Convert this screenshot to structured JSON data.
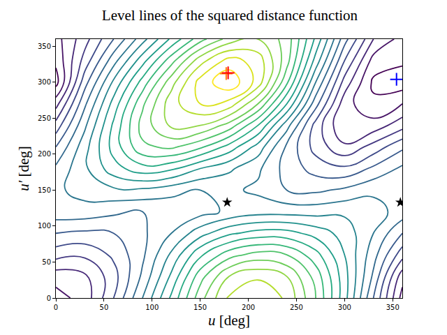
{
  "chart_data": {
    "type": "contour",
    "title": "Level lines of the squared distance function",
    "x_label": "u [deg]",
    "y_label": "u′ [deg]",
    "color": "viridis",
    "grid": false,
    "x": [
      0,
      30,
      60,
      90,
      120,
      150,
      180,
      210,
      240,
      270,
      300,
      330,
      360
    ],
    "y": [
      0,
      30,
      60,
      90,
      120,
      150,
      180,
      210,
      240,
      270,
      300,
      330,
      360
    ],
    "z": [
      [
        0.8,
        1.2,
        2.5,
        4.0,
        5.6,
        7.3,
        8.6,
        9.0,
        8.4,
        7.0,
        5.2,
        3.0,
        0.8
      ],
      [
        1.2,
        1.4,
        2.3,
        3.6,
        5.1,
        6.8,
        8.0,
        8.4,
        8.0,
        6.8,
        5.2,
        3.4,
        1.2
      ],
      [
        2.2,
        2.1,
        2.6,
        3.4,
        4.6,
        5.9,
        6.8,
        7.2,
        7.0,
        6.2,
        5.0,
        3.7,
        2.2
      ],
      [
        3.0,
        2.9,
        3.0,
        3.4,
        4.0,
        4.8,
        5.4,
        5.7,
        5.7,
        5.3,
        4.8,
        4.0,
        3.0
      ],
      [
        3.8,
        3.8,
        3.6,
        3.5,
        3.6,
        3.8,
        4.1,
        4.3,
        4.3,
        4.3,
        4.4,
        4.2,
        3.8
      ],
      [
        3.9,
        4.2,
        4.4,
        4.4,
        4.2,
        4.0,
        4.1,
        3.9,
        3.5,
        3.4,
        3.6,
        3.9,
        3.9
      ],
      [
        3.6,
        4.4,
        5.3,
        5.8,
        5.6,
        5.0,
        4.6,
        4.1,
        3.3,
        2.8,
        2.6,
        3.1,
        3.6
      ],
      [
        3.0,
        4.3,
        5.7,
        6.9,
        7.1,
        6.6,
        5.8,
        4.8,
        3.4,
        2.3,
        1.6,
        2.2,
        2.9
      ],
      [
        2.2,
        3.9,
        5.6,
        7.2,
        8.1,
        8.0,
        7.3,
        6.0,
        4.2,
        2.3,
        1.0,
        1.2,
        1.8
      ],
      [
        1.3,
        3.4,
        5.2,
        6.9,
        8.3,
        9.0,
        8.8,
        7.5,
        5.5,
        3.2,
        1.2,
        0.6,
        1.0
      ],
      [
        0.3,
        2.8,
        4.6,
        6.2,
        7.8,
        9.2,
        9.9,
        8.8,
        6.6,
        4.0,
        1.8,
        0.4,
        0.2
      ],
      [
        0.6,
        2.2,
        3.8,
        5.3,
        6.8,
        8.3,
        9.2,
        8.8,
        7.2,
        4.8,
        2.5,
        0.8,
        0.6
      ],
      [
        0.8,
        1.8,
        3.0,
        4.3,
        5.6,
        6.8,
        7.7,
        8.0,
        7.3,
        5.4,
        3.2,
        1.5,
        0.8
      ]
    ],
    "xlim": [
      0,
      360
    ],
    "ylim": [
      0,
      360
    ],
    "xticks": [
      0,
      50,
      100,
      150,
      200,
      250,
      300,
      350
    ],
    "yticks": [
      0,
      50,
      100,
      150,
      200,
      250,
      300,
      350
    ],
    "series": [
      {
        "type": "scatter",
        "marker": "cross",
        "color": "#ff7f0e",
        "x": [
          177
        ],
        "y": [
          312
        ]
      },
      {
        "type": "scatter",
        "marker": "cross",
        "color": "#ff0000",
        "x": [
          179
        ],
        "y": [
          313
        ]
      },
      {
        "type": "scatter",
        "marker": "cross",
        "color": "#0000ff",
        "x": [
          354
        ],
        "y": [
          304
        ]
      },
      {
        "type": "scatter",
        "marker": "star",
        "color": "#000000",
        "x": [
          178,
          358
        ],
        "y": [
          133,
          133
        ]
      }
    ]
  }
}
